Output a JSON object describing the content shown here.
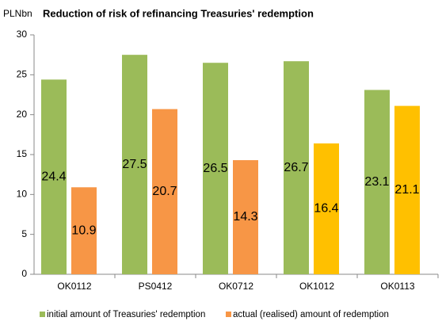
{
  "chart_data": {
    "type": "bar",
    "title": "Reduction of risk of refinancing Treasuries' redemption",
    "y_axis_label": "PLNbn",
    "categories": [
      "OK0112",
      "PS0412",
      "OK0712",
      "OK1012",
      "OK0113"
    ],
    "series": [
      {
        "name": "initial amount of Treasuries' redemption",
        "color": "#9bbb59",
        "values": [
          24.4,
          27.5,
          26.5,
          26.7,
          23.1
        ]
      },
      {
        "name": "actual (realised) amount of redemption",
        "color": "#f79646",
        "colors": [
          "#f79646",
          "#f79646",
          "#f79646",
          "#ffc000",
          "#ffc000"
        ],
        "values": [
          10.9,
          20.7,
          14.3,
          16.4,
          21.1
        ]
      }
    ],
    "ylim": [
      0,
      30
    ],
    "yticks": [
      0,
      5,
      10,
      15,
      20,
      25,
      30
    ],
    "grid": false
  }
}
